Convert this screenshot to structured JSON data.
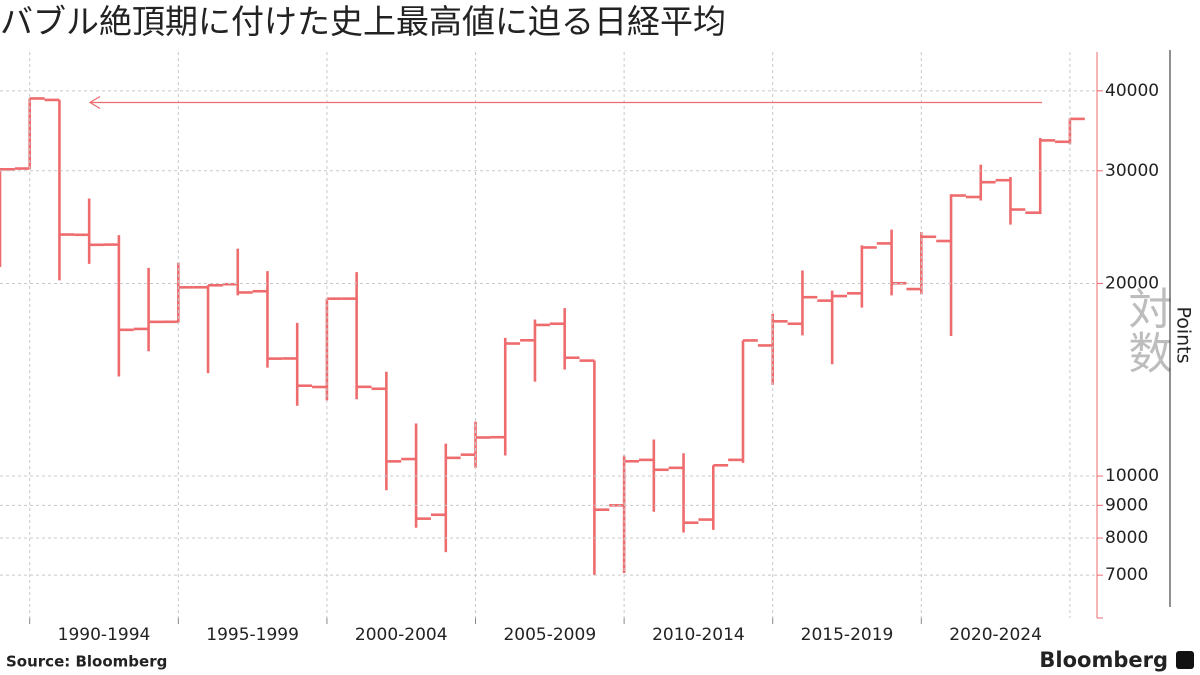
{
  "chart_data": {
    "type": "ohlc",
    "title": "バブル絶頂期に付けた史上最高値に迫る日経平均",
    "x_labels": [
      "1990-1994",
      "1995-1999",
      "2000-2004",
      "2005-2009",
      "2010-2014",
      "2015-2019",
      "2020-2024"
    ],
    "color": "#ee6b6e",
    "open": [
      21217,
      30243,
      38713,
      23827,
      23000,
      16980,
      17421,
      19724,
      19945,
      19446,
      15268,
      13779,
      18937,
      13691,
      10631,
      8700,
      10800,
      11500,
      16300,
      17300,
      15150,
      9000,
      10600,
      10300,
      8550,
      10600,
      16000,
      17300,
      18800,
      19300,
      23100,
      19600,
      23300,
      27300,
      29000,
      25800,
      33300
    ],
    "high": [
      30159,
      38916,
      38713,
      27147,
      23801,
      21148,
      21552,
      19868,
      22666,
      20910,
      17352,
      18934,
      20833,
      14556,
      12081,
      11238,
      12163,
      16445,
      17563,
      18300,
      15156,
      10767,
      11408,
      10857,
      10395,
      16291,
      17935,
      20952,
      19494,
      22939,
      24271,
      24066,
      27568,
      30670,
      29332,
      33753,
      36239
    ],
    "low": [
      21217,
      30183,
      20222,
      21456,
      14309,
      15671,
      17370,
      14485,
      19161,
      14776,
      12880,
      13122,
      13182,
      9504,
      8303,
      7604,
      10300,
      10770,
      14045,
      14670,
      7000,
      7055,
      8796,
      8160,
      8238,
      10486,
      13885,
      16593,
      14952,
      18336,
      19156,
      19241,
      16552,
      26954,
      24718,
      25662,
      33000
    ],
    "close": [
      30159,
      38916,
      23849,
      22984,
      16925,
      17417,
      19723,
      19868,
      19361,
      15259,
      13842,
      18934,
      13786,
      10543,
      8579,
      10677,
      11489,
      16111,
      17226,
      15308,
      8860,
      10546,
      10229,
      8455,
      10395,
      16291,
      17451,
      19034,
      19114,
      22765,
      20015,
      23657,
      27444,
      28792,
      26095,
      33464,
      36158
    ],
    "log_scale": true,
    "grid": true,
    "ylim": [
      6000,
      46000
    ],
    "yticks": [
      7000,
      8000,
      9000,
      10000,
      20000,
      30000,
      40000
    ],
    "y_axis_label": "Points",
    "scale_note": "対数",
    "source": "Source:  Bloomberg",
    "brand": "Bloomberg"
  }
}
